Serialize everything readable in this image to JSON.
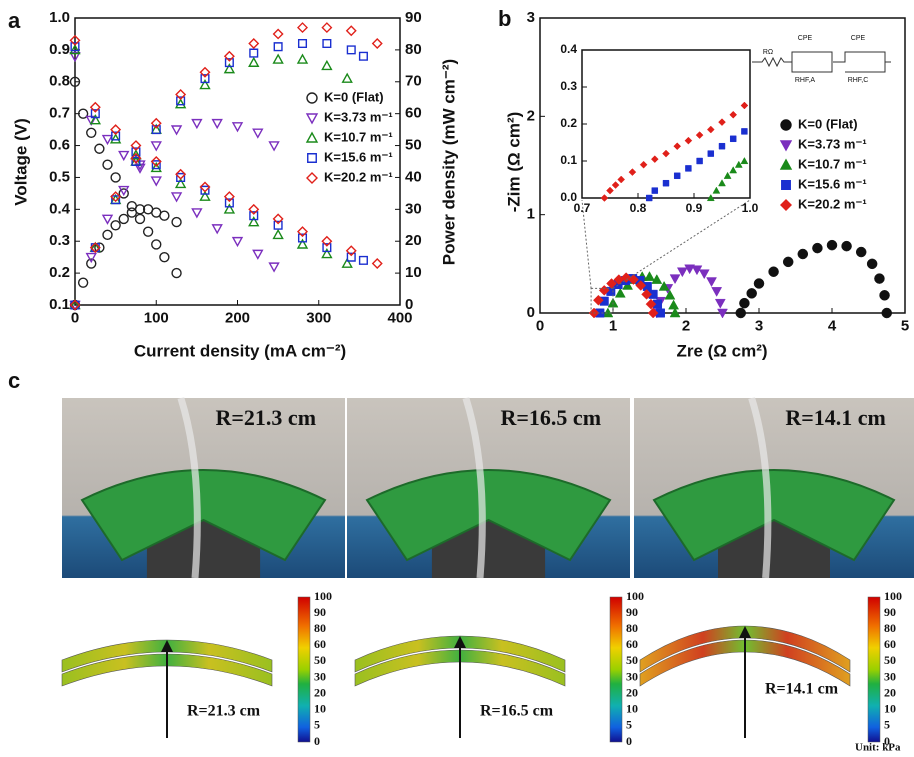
{
  "panel_labels": [
    "a",
    "b",
    "c"
  ],
  "chart_data": [
    {
      "type": "scatter",
      "markers": "open",
      "xlabel": "Current density (mA cm⁻²)",
      "ylabel": "Voltage (V)",
      "y2label": "Power density (mW cm⁻²)",
      "xlim": [
        0,
        400
      ],
      "xticks": [
        0,
        100,
        200,
        300,
        400
      ],
      "ylim": [
        0.1,
        1.0
      ],
      "yticks": [
        0.1,
        0.2,
        0.3,
        0.4,
        0.5,
        0.6,
        0.7,
        0.8,
        0.9,
        {
          "value": 1.0,
          "label": "1.0"
        }
      ],
      "y2lim": [
        0,
        90
      ],
      "y2ticks": [
        0,
        10,
        20,
        30,
        40,
        50,
        60,
        70,
        80,
        90
      ],
      "series": [
        {
          "name": "K=0 (Flat)",
          "color": "#222222",
          "marker": "circle",
          "x": [
            0,
            10,
            20,
            30,
            40,
            50,
            60,
            70,
            80,
            90,
            100,
            110,
            125
          ],
          "voltage": [
            0.8,
            0.7,
            0.64,
            0.59,
            0.54,
            0.5,
            0.45,
            0.41,
            0.37,
            0.33,
            0.29,
            0.25,
            0.2
          ],
          "power": [
            0,
            7,
            13,
            18,
            22,
            25,
            27,
            29,
            30,
            30,
            29,
            28,
            26
          ]
        },
        {
          "name": "K=3.73 m⁻¹",
          "color": "#7b2fbe",
          "marker": "triangle-down",
          "x": [
            0,
            20,
            40,
            60,
            80,
            100,
            125,
            150,
            175,
            200,
            225,
            245
          ],
          "voltage": [
            0.88,
            0.68,
            0.62,
            0.57,
            0.53,
            0.49,
            0.44,
            0.39,
            0.34,
            0.3,
            0.26,
            0.22
          ],
          "power": [
            0,
            15,
            27,
            36,
            44,
            50,
            55,
            57,
            57,
            56,
            54,
            50
          ]
        },
        {
          "name": "K=10.7 m⁻¹",
          "color": "#1a8a1a",
          "marker": "triangle-up",
          "x": [
            0,
            25,
            50,
            75,
            100,
            130,
            160,
            190,
            220,
            250,
            280,
            310,
            335
          ],
          "voltage": [
            0.9,
            0.68,
            0.62,
            0.57,
            0.53,
            0.48,
            0.44,
            0.4,
            0.36,
            0.32,
            0.29,
            0.26,
            0.23
          ],
          "power": [
            0,
            18,
            33,
            45,
            55,
            63,
            69,
            74,
            76,
            77,
            77,
            75,
            71
          ]
        },
        {
          "name": "K=15.6 m⁻¹",
          "color": "#1a2fd0",
          "marker": "square",
          "x": [
            0,
            25,
            50,
            75,
            100,
            130,
            160,
            190,
            220,
            250,
            280,
            310,
            340,
            355
          ],
          "voltage": [
            0.91,
            0.7,
            0.63,
            0.58,
            0.54,
            0.5,
            0.46,
            0.42,
            0.38,
            0.35,
            0.31,
            0.28,
            0.25,
            0.24
          ],
          "power": [
            0,
            18,
            33,
            45,
            55,
            64,
            71,
            76,
            79,
            81,
            82,
            82,
            80,
            78
          ]
        },
        {
          "name": "K=20.2 m⁻¹",
          "color": "#e0201a",
          "marker": "diamond",
          "x": [
            0,
            25,
            50,
            75,
            100,
            130,
            160,
            190,
            220,
            250,
            280,
            310,
            340,
            372
          ],
          "voltage": [
            0.93,
            0.72,
            0.65,
            0.6,
            0.55,
            0.51,
            0.47,
            0.44,
            0.4,
            0.37,
            0.33,
            0.3,
            0.27,
            0.23
          ],
          "power": [
            0,
            18,
            34,
            46,
            57,
            66,
            73,
            78,
            82,
            85,
            87,
            87,
            86,
            82
          ]
        }
      ]
    },
    {
      "type": "scatter",
      "markers": "filled",
      "xlabel": "Zre (Ω cm²)",
      "ylabel": "-Zim (Ω cm²)",
      "xlim": [
        0,
        5
      ],
      "xticks": [
        0,
        1,
        2,
        3,
        4,
        5
      ],
      "ylim": [
        0,
        3
      ],
      "yticks": [
        0,
        1,
        2,
        3
      ],
      "series": [
        {
          "name": "K=0 (Flat)",
          "color": "#111111",
          "marker": "circle",
          "x": [
            2.75,
            2.8,
            2.9,
            3.0,
            3.2,
            3.4,
            3.6,
            3.8,
            4.0,
            4.2,
            4.4,
            4.55,
            4.65,
            4.72,
            4.75
          ],
          "y": [
            0,
            0.1,
            0.2,
            0.3,
            0.42,
            0.52,
            0.6,
            0.66,
            0.69,
            0.68,
            0.62,
            0.5,
            0.35,
            0.18,
            0
          ]
        },
        {
          "name": "K=3.73 m⁻¹",
          "color": "#7b2fbe",
          "marker": "triangle-down",
          "x": [
            1.6,
            1.65,
            1.75,
            1.85,
            1.95,
            2.05,
            2.15,
            2.25,
            2.35,
            2.42,
            2.47,
            2.5
          ],
          "y": [
            0,
            0.12,
            0.25,
            0.35,
            0.42,
            0.45,
            0.44,
            0.4,
            0.32,
            0.22,
            0.1,
            0
          ]
        },
        {
          "name": "K=10.7 m⁻¹",
          "color": "#1a8a1a",
          "marker": "triangle-up",
          "x": [
            0.93,
            1.0,
            1.1,
            1.2,
            1.3,
            1.4,
            1.5,
            1.6,
            1.7,
            1.78,
            1.83,
            1.85
          ],
          "y": [
            0,
            0.1,
            0.2,
            0.28,
            0.34,
            0.37,
            0.37,
            0.34,
            0.27,
            0.18,
            0.08,
            0
          ]
        },
        {
          "name": "K=15.6 m⁻¹",
          "color": "#1a2fd0",
          "marker": "square",
          "x": [
            0.82,
            0.88,
            0.97,
            1.07,
            1.17,
            1.27,
            1.37,
            1.47,
            1.55,
            1.61,
            1.65
          ],
          "y": [
            0,
            0.12,
            0.22,
            0.29,
            0.33,
            0.35,
            0.33,
            0.27,
            0.19,
            0.09,
            0
          ]
        },
        {
          "name": "K=20.2 m⁻¹",
          "color": "#e0201a",
          "marker": "diamond",
          "x": [
            0.74,
            0.8,
            0.88,
            0.98,
            1.08,
            1.18,
            1.28,
            1.38,
            1.46,
            1.52,
            1.55
          ],
          "y": [
            0,
            0.13,
            0.23,
            0.3,
            0.34,
            0.36,
            0.34,
            0.28,
            0.19,
            0.09,
            0
          ]
        }
      ]
    },
    {
      "type": "scatter",
      "markers": "filled",
      "xlim": [
        0.7,
        1.0
      ],
      "xticks": [
        0.7,
        0.8,
        0.9,
        {
          "value": 1.0,
          "label": "1.0"
        }
      ],
      "ylim": [
        0,
        0.4
      ],
      "yticks": [
        {
          "value": 0,
          "label": "0.0"
        },
        0.1,
        0.2,
        0.3,
        0.4
      ],
      "series": [
        {
          "color": "#1a8a1a",
          "marker": "triangle-up",
          "x": [
            0.93,
            0.94,
            0.95,
            0.96,
            0.97,
            0.98,
            0.99
          ],
          "y": [
            0,
            0.02,
            0.04,
            0.06,
            0.075,
            0.09,
            0.1
          ]
        },
        {
          "color": "#1a2fd0",
          "marker": "square",
          "x": [
            0.82,
            0.83,
            0.85,
            0.87,
            0.89,
            0.91,
            0.93,
            0.95,
            0.97,
            0.99
          ],
          "y": [
            0,
            0.02,
            0.04,
            0.06,
            0.08,
            0.1,
            0.12,
            0.14,
            0.16,
            0.18
          ]
        },
        {
          "color": "#e0201a",
          "marker": "diamond",
          "x": [
            0.74,
            0.75,
            0.76,
            0.77,
            0.79,
            0.81,
            0.83,
            0.85,
            0.87,
            0.89,
            0.91,
            0.93,
            0.95,
            0.97,
            0.99
          ],
          "y": [
            0,
            0.02,
            0.035,
            0.05,
            0.07,
            0.09,
            0.105,
            0.12,
            0.14,
            0.155,
            0.17,
            0.185,
            0.205,
            0.225,
            0.25
          ]
        }
      ]
    }
  ],
  "circuit_labels": [
    "RΩ",
    "CPE",
    "RHF,A",
    "CPE",
    "RHF,C"
  ],
  "photos": [
    {
      "label": "R=21.3 cm"
    },
    {
      "label": "R=16.5 cm"
    },
    {
      "label": "R=14.1 cm"
    }
  ],
  "simulations": [
    {
      "label": "R=21.3 cm"
    },
    {
      "label": "R=16.5 cm"
    },
    {
      "label": "R=14.1 cm"
    }
  ],
  "colorbar_ticks": [
    "100",
    "90",
    "80",
    "60",
    "50",
    "30",
    "20",
    "10",
    "5",
    "0"
  ],
  "unit": "Unit: kPa"
}
